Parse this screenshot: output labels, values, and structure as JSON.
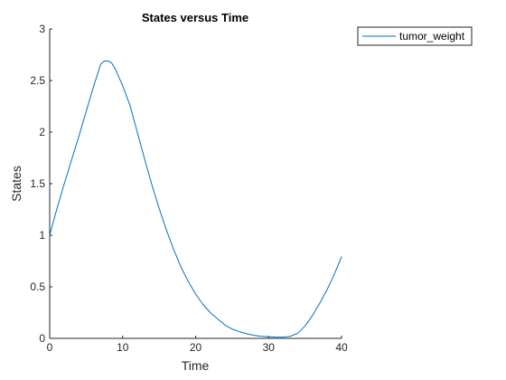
{
  "chart_data": {
    "type": "line",
    "title": "States versus Time",
    "xlabel": "Time",
    "ylabel": "States",
    "xlim": [
      0,
      40
    ],
    "ylim": [
      0,
      3
    ],
    "xticks": [
      0,
      10,
      20,
      30,
      40
    ],
    "yticks": [
      0,
      0.5,
      1,
      1.5,
      2,
      2.5,
      3
    ],
    "x_tick_labels": [
      "0",
      "10",
      "20",
      "30",
      "40"
    ],
    "y_tick_labels": [
      "0",
      "0.5",
      "1",
      "1.5",
      "2",
      "2.5",
      "3"
    ],
    "grid": false,
    "legend_position": "outside top-right",
    "series": [
      {
        "name": "tumor_weight",
        "color": "#0072BD",
        "x": [
          0,
          1,
          2,
          3,
          4,
          5,
          6,
          7,
          7.5,
          8,
          8.5,
          9,
          10,
          11,
          12,
          13,
          14,
          15,
          16,
          17,
          18,
          19,
          20,
          21,
          22,
          23,
          24,
          25,
          26,
          27,
          28,
          29,
          30,
          31,
          32,
          33,
          34,
          35,
          36,
          37,
          38,
          39,
          40
        ],
        "y": [
          1.0,
          1.26,
          1.5,
          1.73,
          1.96,
          2.2,
          2.44,
          2.66,
          2.69,
          2.69,
          2.67,
          2.61,
          2.45,
          2.26,
          2.0,
          1.74,
          1.49,
          1.26,
          1.05,
          0.86,
          0.69,
          0.55,
          0.43,
          0.33,
          0.25,
          0.19,
          0.13,
          0.09,
          0.065,
          0.045,
          0.03,
          0.02,
          0.015,
          0.012,
          0.012,
          0.02,
          0.05,
          0.12,
          0.22,
          0.34,
          0.47,
          0.62,
          0.79
        ]
      }
    ]
  }
}
